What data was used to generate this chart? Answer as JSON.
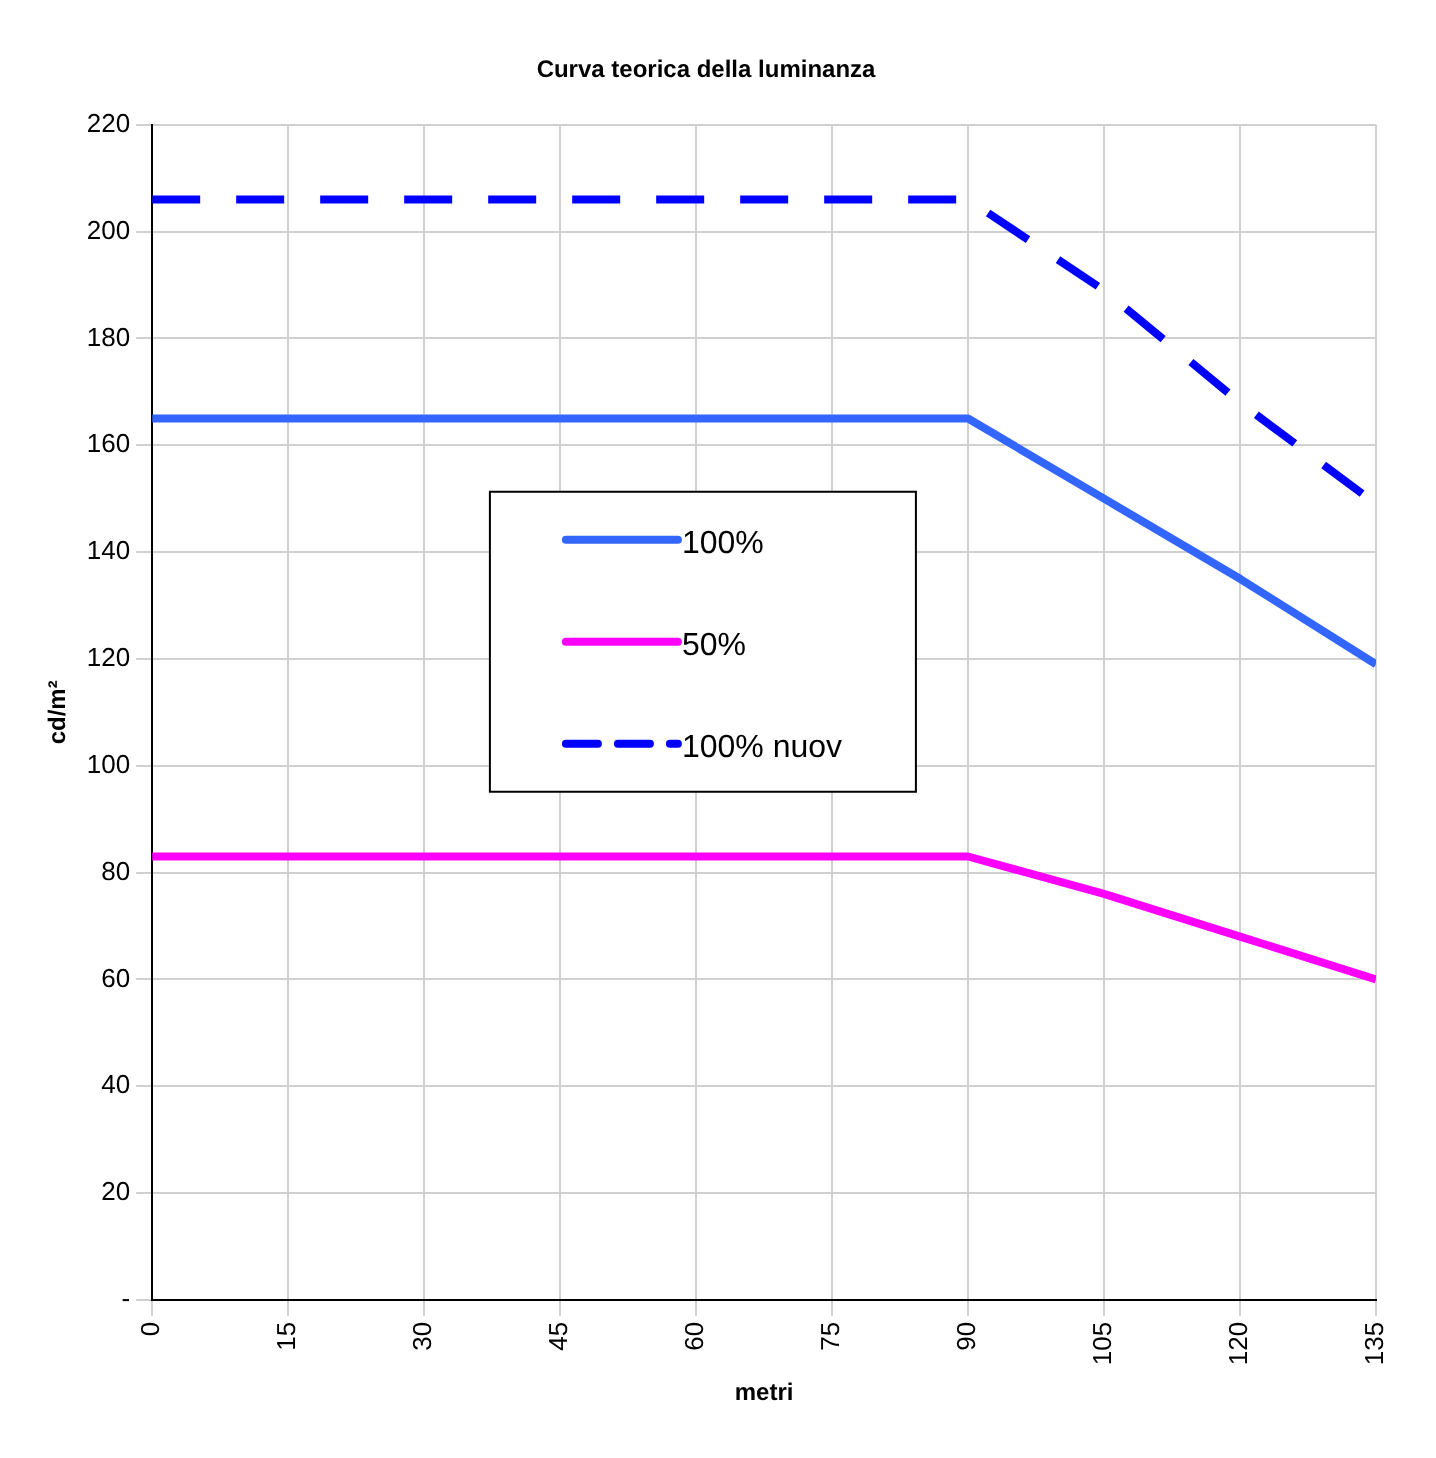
{
  "chart_data": {
    "type": "line",
    "title": "Curva teorica della luminanza",
    "xlabel": "metri",
    "ylabel": "cd/m²",
    "x": [
      0,
      15,
      30,
      45,
      60,
      75,
      90,
      105,
      120,
      135
    ],
    "series": [
      {
        "name": "100%",
        "color": "#3366ff",
        "values": [
          165,
          165,
          165,
          165,
          165,
          165,
          165,
          150,
          135,
          119
        ],
        "line_style": "solid"
      },
      {
        "name": "50%",
        "color": "#ff00ff",
        "values": [
          83,
          83,
          83,
          83,
          83,
          83,
          83,
          76,
          68,
          60
        ],
        "line_style": "solid"
      },
      {
        "name": "100% nuov",
        "color": "#0000ff",
        "values": [
          206,
          206,
          206,
          206,
          206,
          206,
          206,
          189,
          168,
          149
        ],
        "line_style": "dashed"
      }
    ],
    "xlim": [
      0,
      135
    ],
    "xticks": [
      0,
      15,
      30,
      45,
      60,
      75,
      90,
      105,
      120,
      135
    ],
    "ylim": [
      0,
      220
    ],
    "yticks": [
      {
        "value": 0,
        "label": "-"
      },
      20,
      40,
      60,
      80,
      100,
      120,
      140,
      160,
      180,
      200,
      220
    ],
    "grid": true,
    "legend": "center",
    "marker": "none"
  }
}
